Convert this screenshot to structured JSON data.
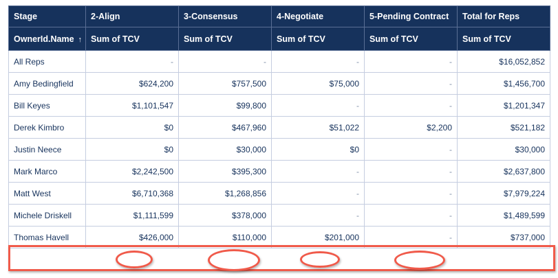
{
  "header": {
    "stage_label": "Stage",
    "stages": [
      "2-Align",
      "3-Consensus",
      "4-Negotiate",
      "5-Pending Contract",
      "Total for Reps"
    ],
    "owner_label": "OwnerId.Name",
    "sort_icon": "arrow-up-icon",
    "measure": "Sum of TCV"
  },
  "rows": [
    {
      "name": "All Reps",
      "values": [
        "-",
        "-",
        "-",
        "-",
        "$16,052,852"
      ]
    },
    {
      "name": "Amy Bedingfield",
      "values": [
        "$624,200",
        "$757,500",
        "$75,000",
        "-",
        "$1,456,700"
      ]
    },
    {
      "name": "Bill Keyes",
      "values": [
        "$1,101,547",
        "$99,800",
        "-",
        "-",
        "$1,201,347"
      ]
    },
    {
      "name": "Derek Kimbro",
      "values": [
        "$0",
        "$467,960",
        "$51,022",
        "$2,200",
        "$521,182"
      ]
    },
    {
      "name": "Justin Neece",
      "values": [
        "$0",
        "$30,000",
        "$0",
        "-",
        "$30,000"
      ]
    },
    {
      "name": "Mark Marco",
      "values": [
        "$2,242,500",
        "$395,300",
        "-",
        "-",
        "$2,637,800"
      ]
    },
    {
      "name": "Matt West",
      "values": [
        "$6,710,368",
        "$1,268,856",
        "-",
        "-",
        "$7,979,224"
      ]
    },
    {
      "name": "Michele Driskell",
      "values": [
        "$1,111,599",
        "$378,000",
        "-",
        "-",
        "$1,489,599"
      ]
    },
    {
      "name": "Thomas Havell",
      "values": [
        "$426,000",
        "$110,000",
        "$201,000",
        "-",
        "$737,000"
      ]
    }
  ],
  "annotation_color": "#f05a4a"
}
